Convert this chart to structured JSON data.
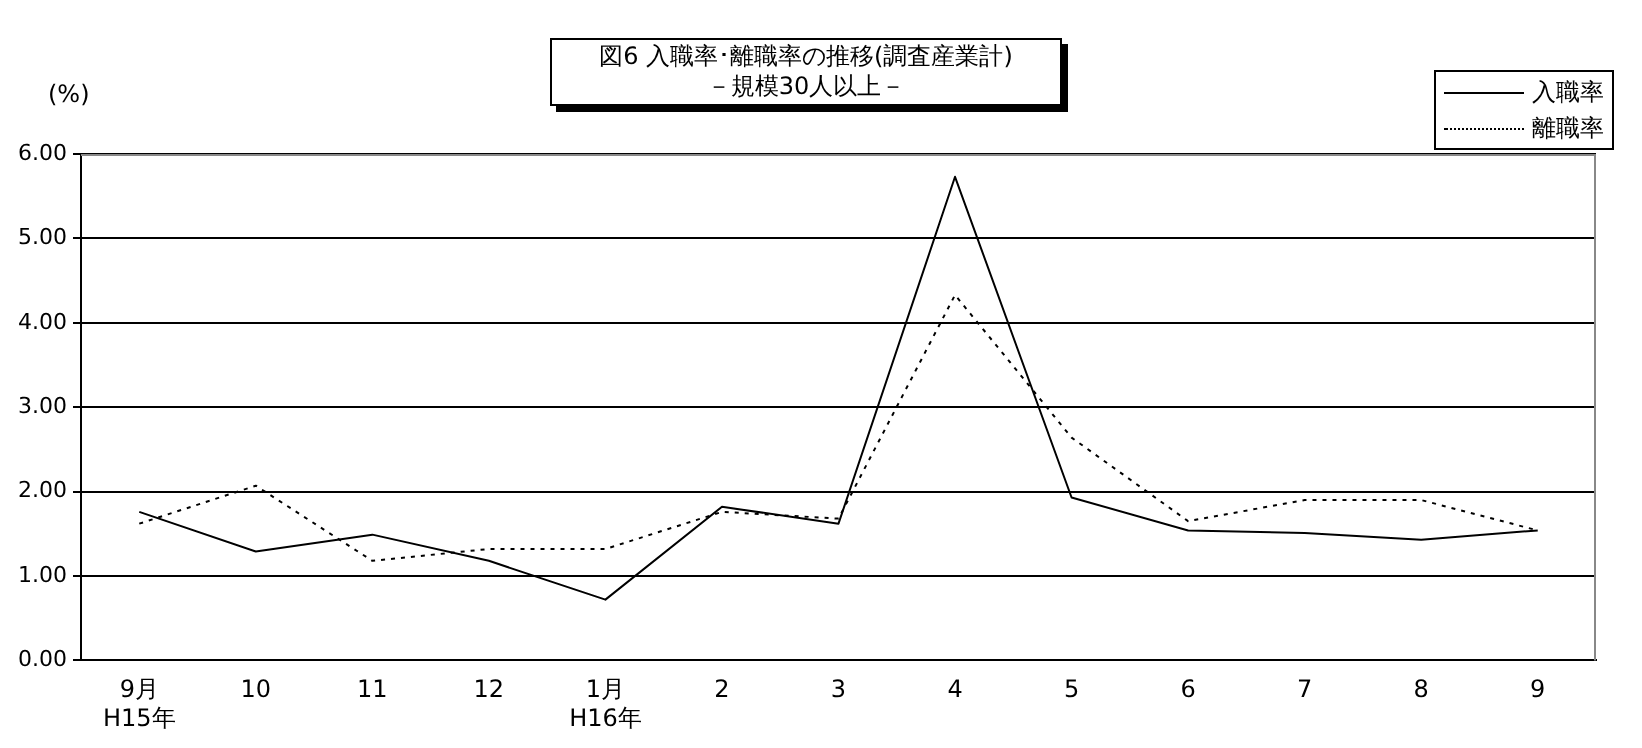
{
  "chart_data": {
    "type": "line",
    "title": "図6  入職率･離職率の推移(調査産業計)",
    "subtitle": "－規模30人以上－",
    "ylabel": "(%)",
    "categories": [
      "9月\nH15年",
      "10",
      "11",
      "12",
      "1月\nH16年",
      "2",
      "3",
      "4",
      "5",
      "6",
      "7",
      "8",
      "9"
    ],
    "series": [
      {
        "name": "入職率",
        "color": "#000000",
        "line_style": "solid",
        "values": [
          1.76,
          1.29,
          1.49,
          1.18,
          0.72,
          1.82,
          1.62,
          5.73,
          1.93,
          1.54,
          1.51,
          1.43,
          1.54
        ]
      },
      {
        "name": "離職率",
        "color": "#000000",
        "line_style": "dotted",
        "values": [
          1.62,
          2.07,
          1.18,
          1.32,
          1.32,
          1.76,
          1.68,
          4.33,
          2.64,
          1.65,
          1.9,
          1.9,
          1.54
        ]
      }
    ],
    "ylim": [
      0,
      6
    ],
    "yticks": [
      {
        "value": 0,
        "label": "0.00"
      },
      {
        "value": 1,
        "label": "1.00"
      },
      {
        "value": 2,
        "label": "2.00"
      },
      {
        "value": 3,
        "label": "3.00"
      },
      {
        "value": 4,
        "label": "4.00"
      },
      {
        "value": 5,
        "label": "5.00"
      },
      {
        "value": 6,
        "label": "6.00"
      }
    ],
    "grid": "y",
    "legend": "top right",
    "marker": "none"
  }
}
